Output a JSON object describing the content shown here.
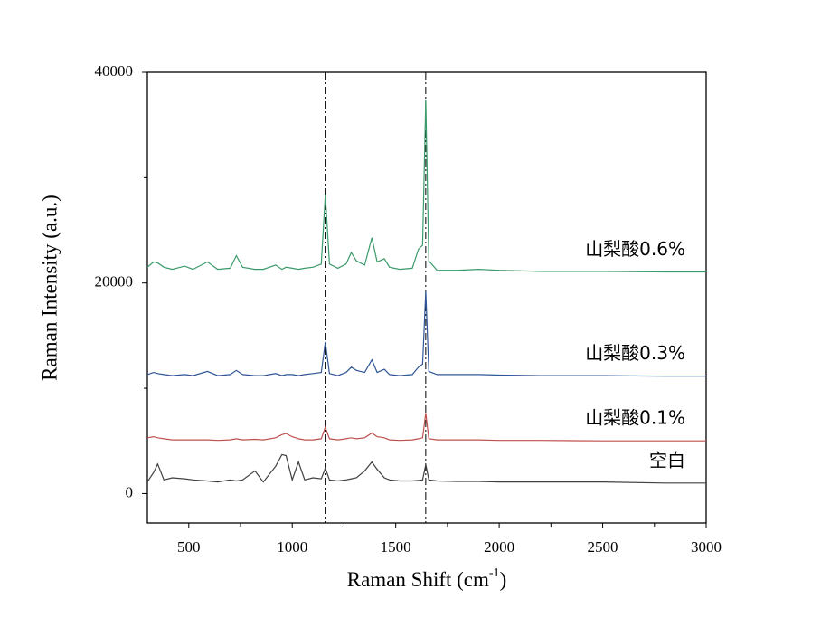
{
  "chart_data": {
    "type": "line",
    "xlabel": [
      "Raman Shift (cm",
      "-1",
      ")"
    ],
    "ylabel": "Raman Intensity (a.u.)",
    "xlim": [
      300,
      3000
    ],
    "ylim": [
      -2800,
      40000
    ],
    "xticks": [
      500,
      1000,
      1500,
      2000,
      2500,
      3000
    ],
    "xminorticks": [
      750,
      1250,
      1750,
      2250,
      2750
    ],
    "yticks": [
      0,
      20000,
      40000
    ],
    "yminorticks": [
      10000,
      30000
    ],
    "vlines": [
      1160,
      1645
    ],
    "x": [
      300,
      330,
      350,
      380,
      420,
      480,
      520,
      590,
      640,
      700,
      730,
      760,
      820,
      860,
      920,
      950,
      970,
      1000,
      1030,
      1060,
      1100,
      1140,
      1160,
      1180,
      1220,
      1260,
      1285,
      1310,
      1350,
      1385,
      1410,
      1445,
      1470,
      1520,
      1580,
      1610,
      1630,
      1645,
      1660,
      1700,
      1800,
      1900,
      2000,
      2200,
      2500,
      2800,
      3000
    ],
    "series": [
      {
        "name": "空白",
        "color": "#404040",
        "values": [
          1100,
          2000,
          2800,
          1300,
          1500,
          1400,
          1300,
          1200,
          1100,
          1300,
          1200,
          1300,
          2150,
          1100,
          2600,
          3700,
          3600,
          1300,
          3000,
          1300,
          1500,
          1400,
          2400,
          1300,
          1200,
          1300,
          1400,
          1500,
          2150,
          3000,
          2300,
          1500,
          1300,
          1200,
          1200,
          1250,
          1300,
          2750,
          1300,
          1200,
          1150,
          1150,
          1100,
          1100,
          1100,
          1000,
          1000
        ]
      },
      {
        "name": "山梨酸0.1%",
        "color": "#c0504d",
        "values": [
          5300,
          5400,
          5300,
          5200,
          5100,
          5100,
          5100,
          5100,
          5050,
          5100,
          5200,
          5100,
          5150,
          5100,
          5300,
          5600,
          5700,
          5400,
          5200,
          5100,
          5100,
          5200,
          6300,
          5200,
          5100,
          5200,
          5300,
          5200,
          5300,
          5750,
          5400,
          5300,
          5100,
          5050,
          5100,
          5200,
          5300,
          7650,
          5200,
          5100,
          5100,
          5100,
          5050,
          5050,
          5000,
          5000,
          5000
        ]
      },
      {
        "name": "山梨酸0.3%",
        "color": "#2f5597",
        "values": [
          11300,
          11500,
          11400,
          11300,
          11200,
          11300,
          11200,
          11600,
          11200,
          11300,
          11700,
          11300,
          11200,
          11200,
          11400,
          11200,
          11300,
          11300,
          11200,
          11300,
          11400,
          11500,
          14400,
          11400,
          11200,
          11500,
          12000,
          11700,
          11500,
          12700,
          11500,
          11800,
          11300,
          11200,
          11300,
          12000,
          12300,
          19200,
          11600,
          11300,
          11300,
          11300,
          11250,
          11200,
          11200,
          11150,
          11150
        ]
      },
      {
        "name": "山梨酸0.6%",
        "color": "#3a9a6a",
        "values": [
          21500,
          22000,
          21900,
          21500,
          21300,
          21600,
          21300,
          22000,
          21300,
          21400,
          22600,
          21500,
          21300,
          21300,
          21700,
          21300,
          21500,
          21400,
          21300,
          21400,
          21500,
          21800,
          28400,
          21800,
          21400,
          21800,
          22900,
          22100,
          21700,
          24300,
          22000,
          22300,
          21500,
          21300,
          21400,
          23200,
          23600,
          37400,
          22100,
          21200,
          21200,
          21300,
          21200,
          21100,
          21100,
          21050,
          21050
        ]
      }
    ]
  }
}
